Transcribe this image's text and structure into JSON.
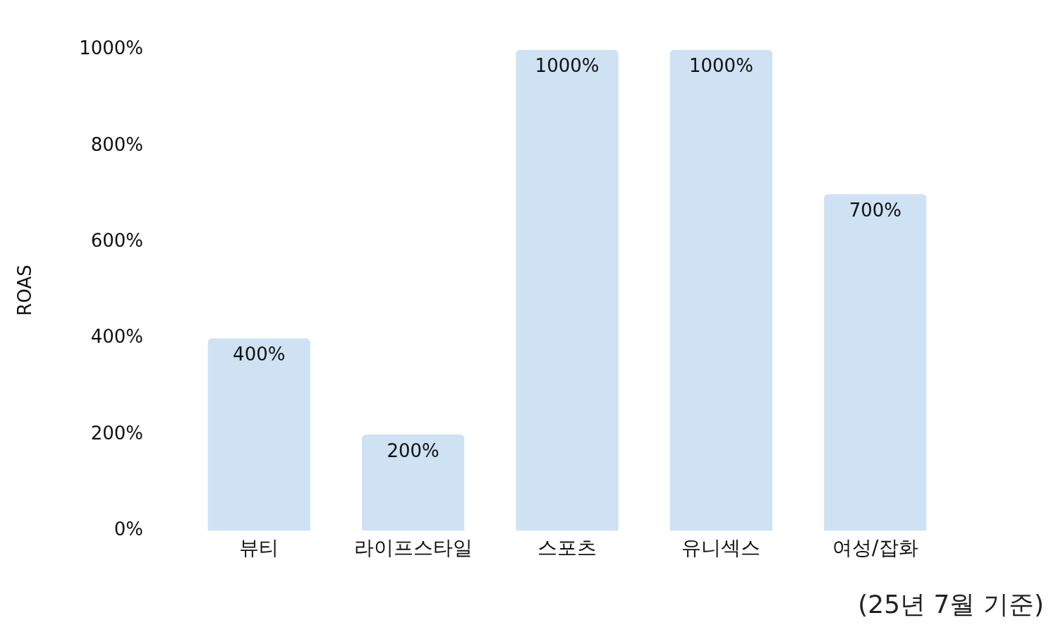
{
  "chart_data": {
    "type": "bar",
    "ylabel": "ROAS",
    "categories": [
      "뷰티",
      "라이프스타일",
      "스포츠",
      "유니섹스",
      "여성/잡화"
    ],
    "values": [
      400,
      200,
      1000,
      1000,
      700
    ],
    "value_labels": [
      "400%",
      "200%",
      "1000%",
      "1000%",
      "700%"
    ],
    "color": "#cfe2f3",
    "ylim": [
      0,
      1000
    ],
    "yticks": [
      {
        "value": 0,
        "label": "0%"
      },
      {
        "value": 200,
        "label": "200%"
      },
      {
        "value": 400,
        "label": "400%"
      },
      {
        "value": 600,
        "label": "600%"
      },
      {
        "value": 800,
        "label": "800%"
      },
      {
        "value": 1000,
        "label": "1000%"
      }
    ],
    "grid": false,
    "legend": false,
    "annotations": [
      "(25년 7월 기준)"
    ]
  }
}
